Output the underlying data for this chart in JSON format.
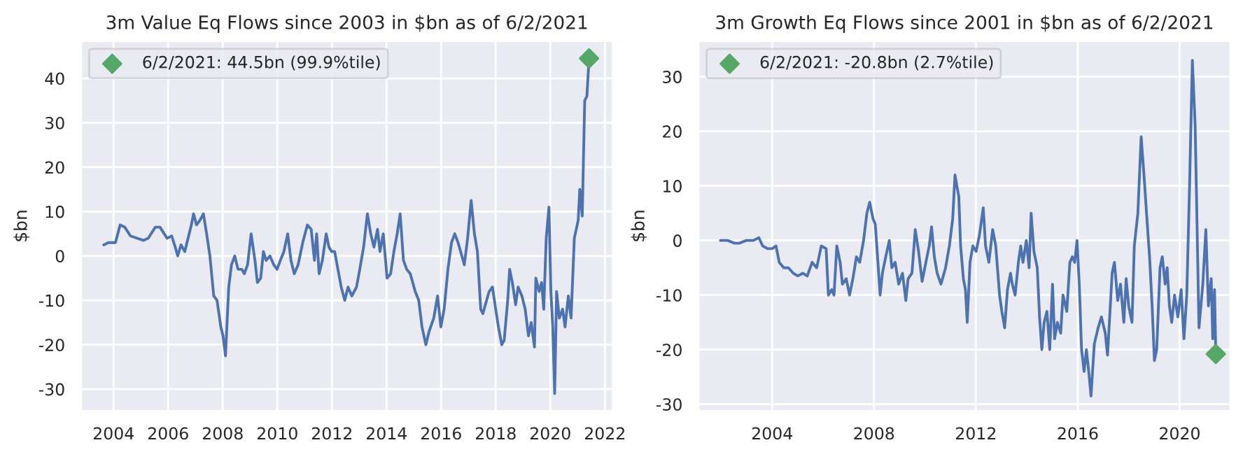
{
  "chart_data": [
    {
      "type": "line",
      "title": "3m Value Eq Flows since 2003 in $bn as of 6/2/2021",
      "ylabel": "$bn",
      "xlim": [
        2002.8,
        2022.3
      ],
      "xticks": [
        2004,
        2006,
        2008,
        2010,
        2012,
        2014,
        2016,
        2018,
        2020,
        2022
      ],
      "ylim": [
        -35,
        48.5
      ],
      "yticks": [
        -30,
        -20,
        -10,
        0,
        10,
        20,
        30,
        40
      ],
      "grid": true,
      "legend": "top left",
      "series": [
        {
          "color": "#4c72b0",
          "x": [
            2003.64,
            2003.81,
            2004.07,
            2004.24,
            2004.41,
            2004.62,
            2005.1,
            2005.27,
            2005.53,
            2005.7,
            2005.96,
            2006.13,
            2006.26,
            2006.35,
            2006.47,
            2006.61,
            2006.73,
            2006.85,
            2006.93,
            2007.04,
            2007.16,
            2007.29,
            2007.41,
            2007.53,
            2007.67,
            2007.79,
            2007.93,
            2008.01,
            2008.1,
            2008.22,
            2008.32,
            2008.44,
            2008.56,
            2008.7,
            2008.79,
            2008.91,
            2009.04,
            2009.18,
            2009.27,
            2009.39,
            2009.49,
            2009.59,
            2009.73,
            2009.87,
            2009.99,
            2010.11,
            2010.24,
            2010.38,
            2010.5,
            2010.62,
            2010.76,
            2010.93,
            2011.1,
            2011.24,
            2011.36,
            2011.44,
            2011.53,
            2011.65,
            2011.79,
            2011.89,
            2011.99,
            2012.1,
            2012.22,
            2012.34,
            2012.47,
            2012.59,
            2012.73,
            2012.9,
            2013.02,
            2013.16,
            2013.3,
            2013.42,
            2013.54,
            2013.67,
            2013.76,
            2013.88,
            2014.02,
            2014.15,
            2014.27,
            2014.39,
            2014.5,
            2014.62,
            2014.74,
            2014.87,
            2015.05,
            2015.18,
            2015.3,
            2015.44,
            2015.56,
            2015.73,
            2015.87,
            2015.99,
            2016.11,
            2016.25,
            2016.38,
            2016.5,
            2016.62,
            2016.76,
            2016.85,
            2016.97,
            2017.1,
            2017.22,
            2017.33,
            2017.45,
            2017.53,
            2017.62,
            2017.76,
            2017.88,
            2018.0,
            2018.1,
            2018.22,
            2018.31,
            2018.44,
            2018.51,
            2018.61,
            2018.73,
            2018.82,
            2018.96,
            2019.08,
            2019.2,
            2019.3,
            2019.42,
            2019.47,
            2019.59,
            2019.68,
            2019.76,
            2019.85,
            2019.95,
            2020.02,
            2020.09,
            2020.16,
            2020.23,
            2020.33,
            2020.45,
            2020.54,
            2020.66,
            2020.76,
            2020.88,
            2021.02,
            2021.08,
            2021.17,
            2021.26,
            2021.34,
            2021.42
          ],
          "values": [
            2.5,
            3,
            3,
            7,
            6.5,
            4.5,
            3.5,
            4,
            6.5,
            6.5,
            4,
            4.5,
            2,
            0,
            2.5,
            1,
            4,
            7,
            9.5,
            7,
            8,
            9.5,
            5,
            0,
            -9,
            -10,
            -16,
            -18,
            -22.5,
            -7,
            -2,
            0,
            -3,
            -3,
            -4,
            -2,
            5,
            -1,
            -6,
            -5,
            1,
            -1,
            0,
            -2,
            -3,
            -1,
            1,
            5,
            -1,
            -4,
            -2,
            3,
            7,
            6,
            -1,
            5,
            -4,
            -1,
            5,
            2,
            1,
            1,
            -3,
            -7,
            -10,
            -7,
            -9,
            -7,
            -3,
            2,
            9.5,
            5,
            2,
            6,
            1,
            5,
            -5,
            -4,
            1,
            5,
            9.5,
            -1,
            -3,
            -4,
            -8,
            -10,
            -16,
            -20,
            -17,
            -14,
            -9,
            -16,
            -12,
            -3,
            3,
            5,
            3,
            0,
            -2,
            4,
            12.5,
            5,
            1,
            -12,
            -13,
            -11,
            -8,
            -7,
            -12,
            -16,
            -20,
            -19,
            -10,
            -3,
            -6,
            -11,
            -7,
            -9,
            -12,
            -18,
            -15,
            -20.5,
            -5,
            -8,
            -6,
            -12,
            4,
            11,
            -8,
            -16,
            -31,
            -8,
            -14,
            -12,
            -16,
            -9,
            -14,
            4,
            8,
            15,
            9,
            35,
            36,
            44.5
          ]
        },
        {
          "type": "scatter",
          "name": "6/2/2021: 44.5bn (99.9%tile)",
          "color": "#55a868",
          "marker": "diamond",
          "x": [
            2021.42
          ],
          "values": [
            44.5
          ]
        }
      ]
    },
    {
      "type": "line",
      "title": "3m Growth Eq Flows since 2001 in $bn as of 6/2/2021",
      "ylabel": "$bn",
      "xlim": [
        2001.1,
        2022.0
      ],
      "xticks": [
        2004,
        2008,
        2012,
        2016,
        2020
      ],
      "ylim": [
        -31.3,
        36.6
      ],
      "yticks": [
        -30,
        -20,
        -10,
        0,
        10,
        20,
        30
      ],
      "grid": true,
      "legend": "top left",
      "series": [
        {
          "color": "#4c72b0",
          "x": [
            2001.97,
            2002.25,
            2002.53,
            2002.71,
            2002.99,
            2003.26,
            2003.48,
            2003.63,
            2003.82,
            2004.0,
            2004.15,
            2004.28,
            2004.46,
            2004.64,
            2004.83,
            2005.01,
            2005.2,
            2005.38,
            2005.57,
            2005.75,
            2005.93,
            2006.12,
            2006.21,
            2006.34,
            2006.43,
            2006.54,
            2006.67,
            2006.76,
            2006.91,
            2007.04,
            2007.17,
            2007.31,
            2007.44,
            2007.59,
            2007.72,
            2007.83,
            2007.96,
            2008.05,
            2008.14,
            2008.24,
            2008.33,
            2008.46,
            2008.6,
            2008.7,
            2008.83,
            2008.97,
            2009.12,
            2009.25,
            2009.34,
            2009.49,
            2009.62,
            2009.75,
            2009.89,
            2010.08,
            2010.17,
            2010.26,
            2010.37,
            2010.48,
            2010.63,
            2010.81,
            2010.96,
            2011.09,
            2011.18,
            2011.33,
            2011.4,
            2011.51,
            2011.59,
            2011.66,
            2011.77,
            2011.88,
            2012.01,
            2012.14,
            2012.29,
            2012.38,
            2012.51,
            2012.66,
            2012.78,
            2012.93,
            2013.02,
            2013.13,
            2013.24,
            2013.36,
            2013.43,
            2013.54,
            2013.67,
            2013.76,
            2013.85,
            2013.98,
            2014.09,
            2014.17,
            2014.28,
            2014.41,
            2014.5,
            2014.59,
            2014.68,
            2014.79,
            2014.9,
            2015.01,
            2015.09,
            2015.2,
            2015.33,
            2015.42,
            2015.57,
            2015.69,
            2015.79,
            2015.88,
            2015.97,
            2016.06,
            2016.15,
            2016.25,
            2016.34,
            2016.43,
            2016.52,
            2016.65,
            2016.8,
            2016.93,
            2017.08,
            2017.17,
            2017.35,
            2017.44,
            2017.57,
            2017.68,
            2017.81,
            2017.9,
            2018.0,
            2018.13,
            2018.22,
            2018.36,
            2018.49,
            2018.6,
            2018.73,
            2018.82,
            2018.92,
            2019.01,
            2019.1,
            2019.23,
            2019.32,
            2019.43,
            2019.51,
            2019.6,
            2019.69,
            2019.8,
            2019.93,
            2020.06,
            2020.17,
            2020.28,
            2020.39,
            2020.5,
            2020.61,
            2020.76,
            2020.91,
            2021.03,
            2021.13,
            2021.24,
            2021.3,
            2021.37,
            2021.42
          ],
          "values": [
            0,
            0,
            -0.5,
            -0.5,
            0,
            0,
            0.5,
            -1,
            -1.5,
            -1.5,
            -1,
            -4,
            -5,
            -5,
            -6,
            -6.5,
            -6,
            -6.5,
            -4,
            -5,
            -1,
            -1.5,
            -10,
            -9,
            -10,
            -1,
            -4,
            -8,
            -7,
            -10,
            -7,
            -3,
            -4,
            0,
            5,
            7,
            4,
            3,
            -3,
            -10,
            -6,
            -3,
            0,
            -5,
            -4,
            -8,
            -6,
            -11,
            -7,
            -6,
            2,
            -2,
            -7.5,
            -3,
            -1,
            2.5,
            -3,
            -6,
            -8,
            -5,
            -1,
            4,
            12,
            8,
            -1,
            -7,
            -9,
            -15,
            -4,
            -1,
            -2,
            1,
            6,
            -1,
            -4,
            2,
            -1,
            -10,
            -13,
            -16,
            -9,
            -6,
            -8,
            -10,
            -4,
            -1,
            -4,
            0,
            -5,
            5,
            -2,
            -5,
            -14,
            -20,
            -15,
            -13,
            -20,
            -8,
            -18,
            -15,
            -17,
            -10,
            -13,
            -4,
            -3,
            -4,
            0,
            -8,
            -20,
            -24,
            -20,
            -24,
            -28.5,
            -19,
            -16,
            -14,
            -17,
            -21,
            -6,
            -4,
            -11,
            -8,
            -15,
            -7,
            -12,
            -15,
            -1,
            5,
            19,
            12,
            3,
            -3,
            -12,
            -22,
            -20,
            -5,
            -3,
            -8,
            -5,
            -12,
            -15,
            -10,
            -14,
            -9,
            -18,
            -10,
            10,
            33,
            21,
            -16,
            -8,
            2,
            -12,
            -7,
            -18,
            -9,
            -20.8
          ]
        },
        {
          "type": "scatter",
          "name": "6/2/2021: -20.8bn (2.7%tile)",
          "color": "#55a868",
          "marker": "diamond",
          "x": [
            2021.42
          ],
          "values": [
            -20.8
          ]
        }
      ]
    }
  ]
}
